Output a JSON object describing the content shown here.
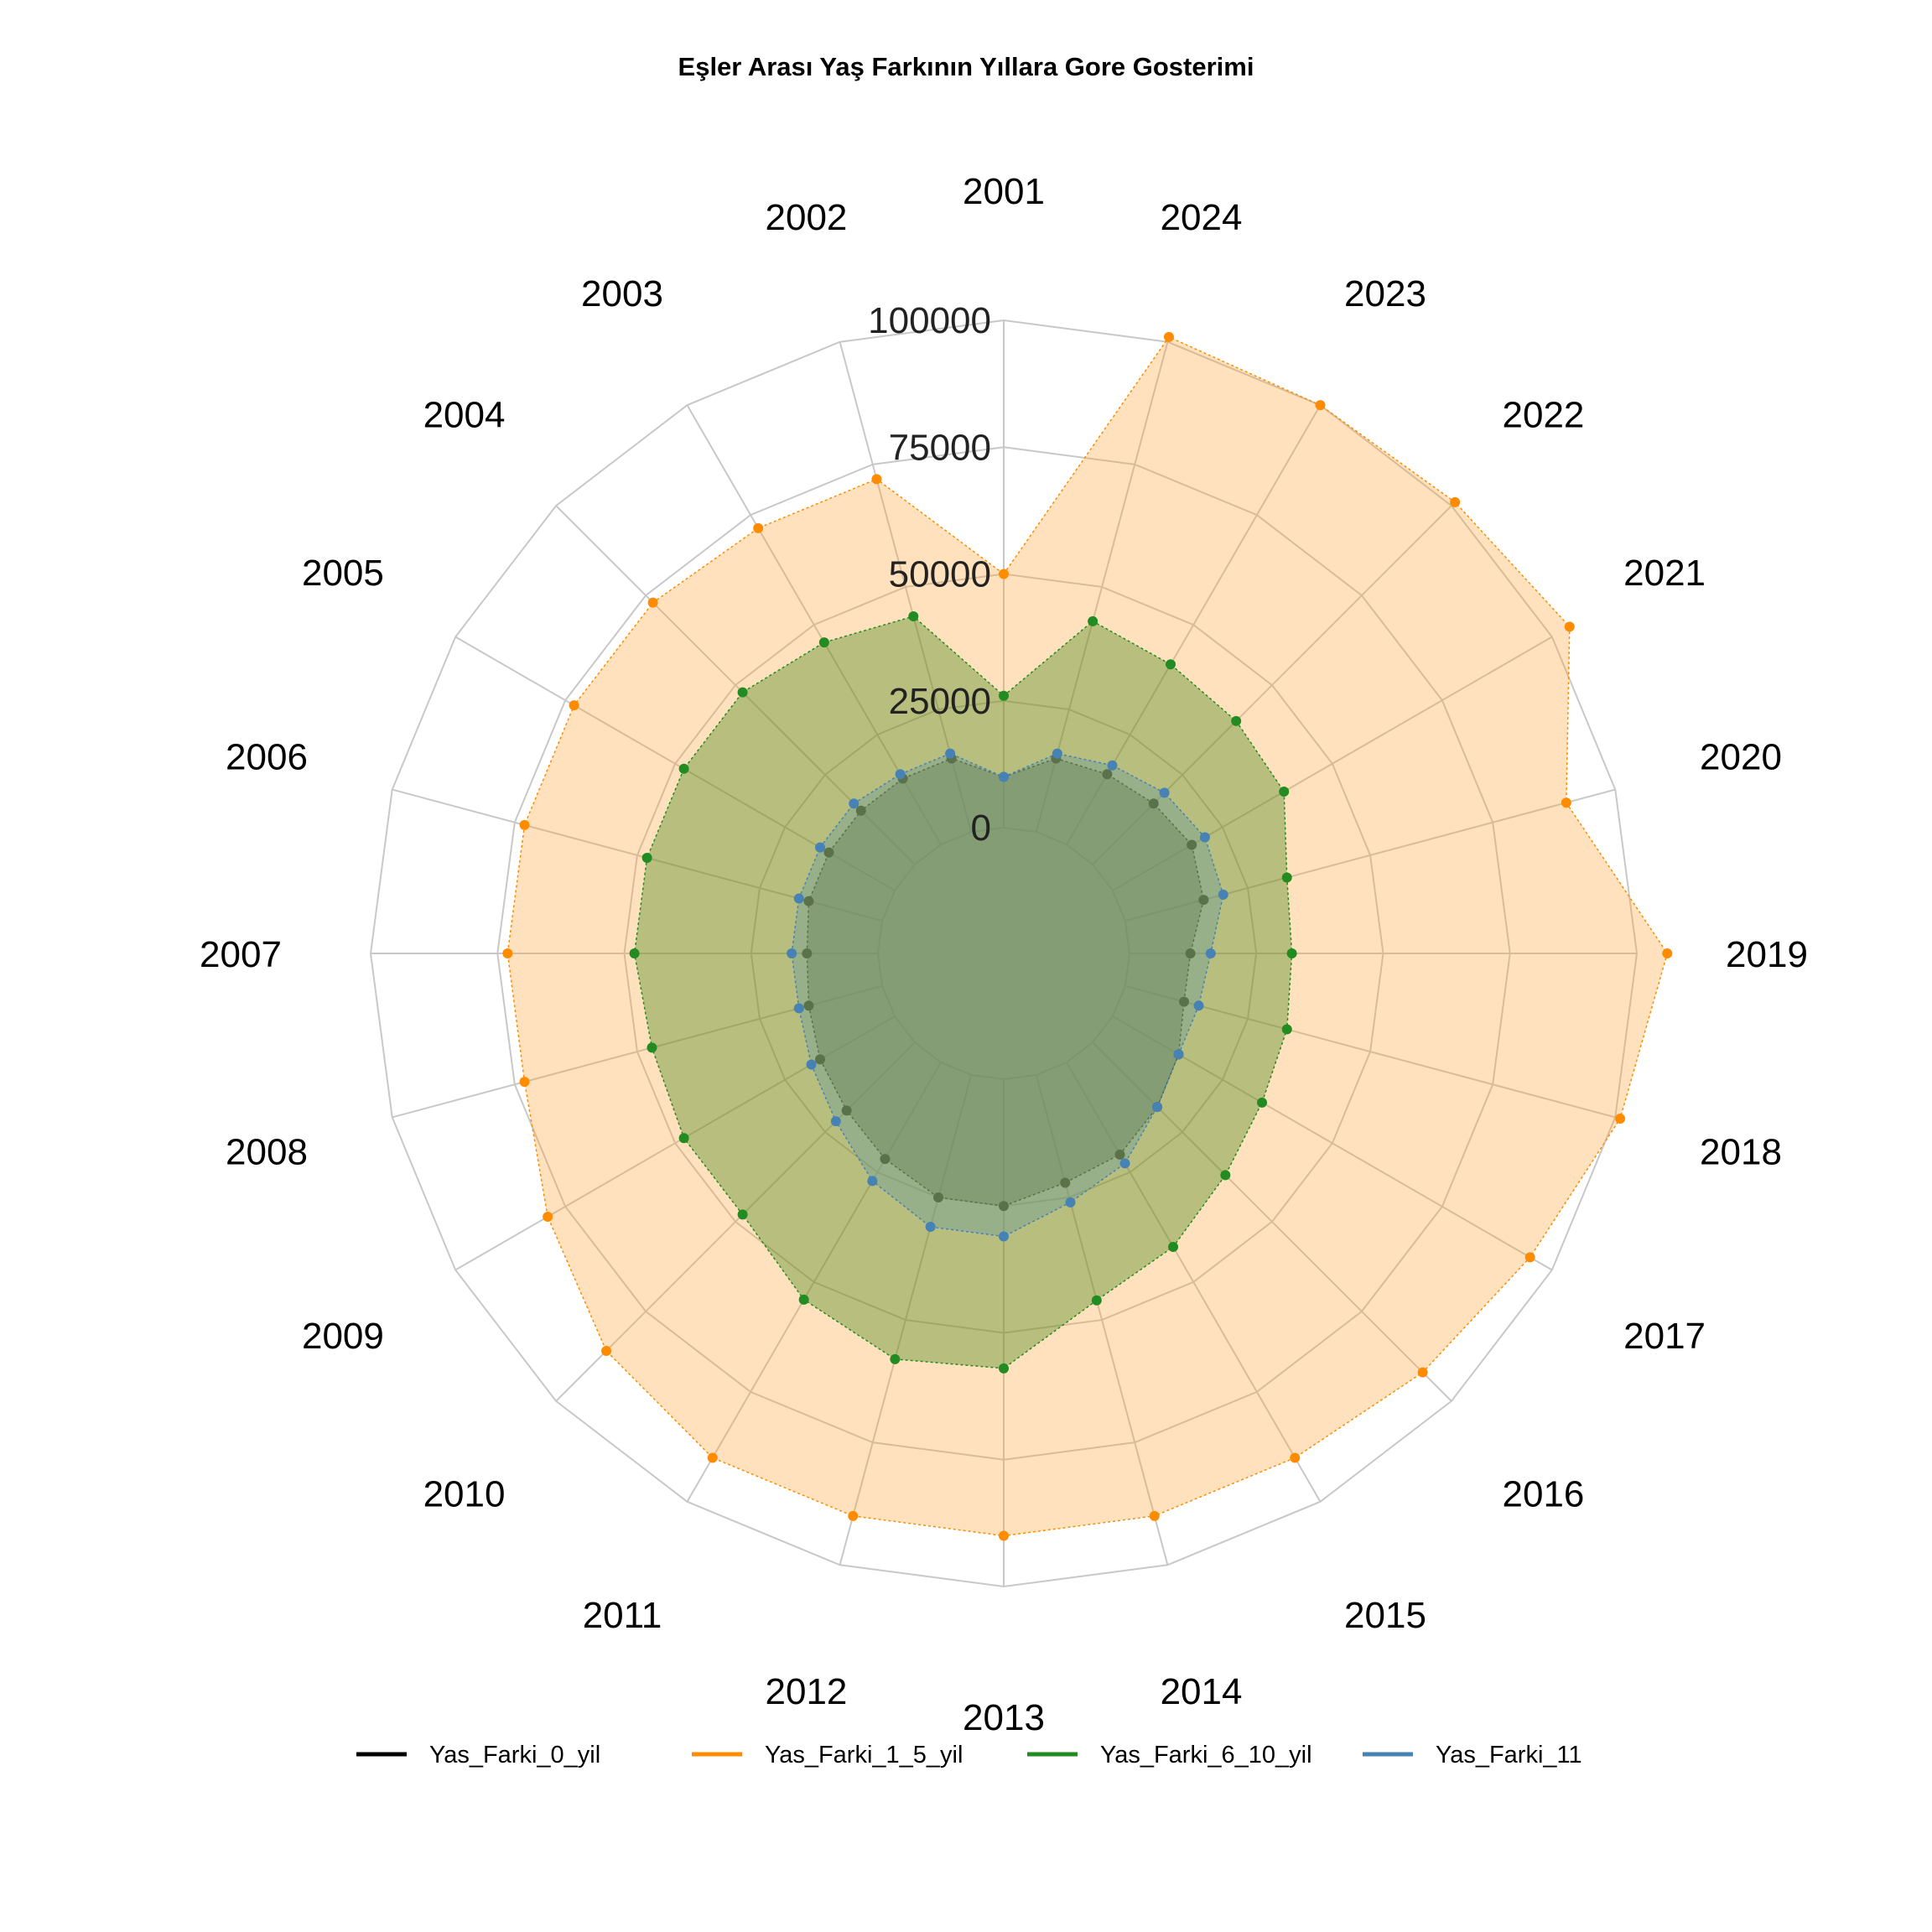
{
  "chart_data": {
    "type": "radar",
    "title": "Eşler Arası Yaş Farkının Yıllara Gore Gosterimi",
    "categories": [
      "2001",
      "2024",
      "2023",
      "2022",
      "2021",
      "2020",
      "2019",
      "2018",
      "2017",
      "2016",
      "2015",
      "2014",
      "2013",
      "2012",
      "2011",
      "2010",
      "2009",
      "2008",
      "2007",
      "2006",
      "2005",
      "2004",
      "2003",
      "2002"
    ],
    "r_ticks": [
      0,
      25000,
      50000,
      75000,
      100000
    ],
    "r_tick_labels": [
      "0",
      "25000",
      "50000",
      "75000",
      "100000"
    ],
    "rlim": [
      0,
      100000
    ],
    "grid": true,
    "legend_position": "bottom",
    "series": [
      {
        "name": "Yas_Farki_0_yil",
        "color": "#000000",
        "fill": "#3a3a3a",
        "values": [
          10000,
          15000,
          16000,
          17000,
          18000,
          16000,
          12000,
          12000,
          15000,
          18000,
          21000,
          22000,
          25000,
          25000,
          22000,
          19000,
          17000,
          15000,
          14000,
          15000,
          15000,
          15000,
          15000,
          15000
        ]
      },
      {
        "name": "Yas_Farki_1_5_yil",
        "color": "#ff8c00",
        "fill": "#ffa533",
        "values": [
          50000,
          101000,
          100000,
          101000,
          104000,
          90000,
          106000,
          101000,
          95000,
          92000,
          90000,
          90000,
          90000,
          90000,
          90000,
          86000,
          79000,
          73000,
          73000,
          73000,
          73000,
          73000,
          72000,
          72000
        ]
      },
      {
        "name": "Yas_Farki_6_10_yil",
        "color": "#228b22",
        "fill": "#4d8a1f",
        "values": [
          26000,
          43000,
          41000,
          40000,
          39000,
          33000,
          32000,
          33000,
          34000,
          37000,
          42000,
          46000,
          57000,
          58000,
          54000,
          48000,
          48000,
          47000,
          48000,
          48000,
          48000,
          48000,
          46000,
          44000
        ]
      },
      {
        "name": "Yas_Farki_11",
        "color": "#4682b4",
        "fill": "#6a9a9a",
        "values": [
          10000,
          16000,
          18000,
          20000,
          21000,
          20000,
          16000,
          15000,
          15000,
          18000,
          23000,
          26000,
          31000,
          31000,
          27000,
          22000,
          19000,
          17000,
          17000,
          17000,
          17000,
          17000,
          16000,
          16000
        ]
      }
    ]
  }
}
